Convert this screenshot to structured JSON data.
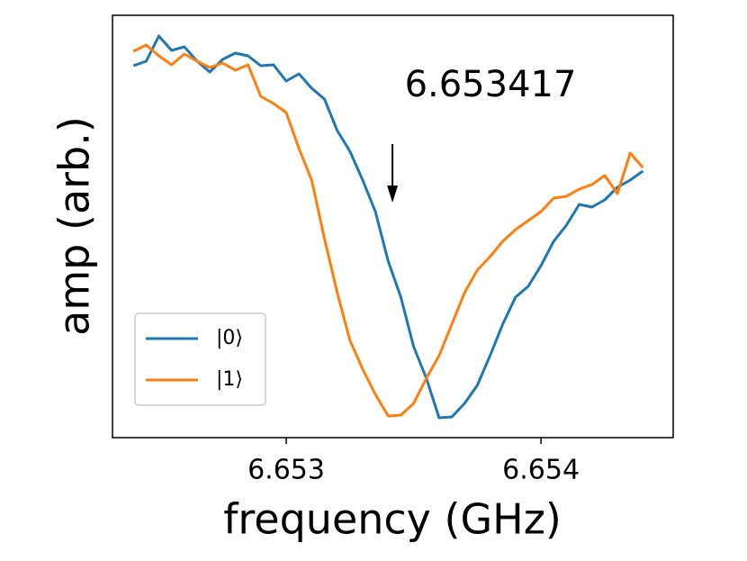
{
  "chart_data": {
    "type": "line",
    "xlabel": "frequency (GHz)",
    "ylabel": "amp (arb.)",
    "x": [
      6.6524,
      6.65245,
      6.6525,
      6.65255,
      6.6526,
      6.65265,
      6.6527,
      6.65275,
      6.6528,
      6.65285,
      6.6529,
      6.65295,
      6.653,
      6.65305,
      6.6531,
      6.65315,
      6.6532,
      6.65325,
      6.6533,
      6.65335,
      6.6534,
      6.65345,
      6.6535,
      6.65355,
      6.6536,
      6.65365,
      6.6537,
      6.65375,
      6.6538,
      6.65385,
      6.6539,
      6.65395,
      6.654,
      6.65405,
      6.6541,
      6.65415,
      6.6542,
      6.65425,
      6.6543,
      6.65435,
      6.6544
    ],
    "series": [
      {
        "name": "|0⟩",
        "color": "#1f77b4",
        "values": [
          413,
          418,
          446,
          430,
          434,
          418,
          406,
          420,
          427,
          424,
          413,
          414,
          396,
          404,
          388,
          376,
          341,
          318,
          286,
          251,
          196,
          156,
          101,
          66,
          22,
          23,
          38,
          58,
          91,
          126,
          156,
          168,
          191,
          218,
          236,
          259,
          256,
          264,
          278,
          286,
          296
        ]
      },
      {
        "name": "|1⟩",
        "color": "#ff7f0e",
        "values": [
          429,
          436,
          424,
          414,
          426,
          418,
          411,
          416,
          408,
          414,
          379,
          371,
          361,
          321,
          286,
          221,
          161,
          108,
          76,
          48,
          24,
          25,
          38,
          66,
          91,
          126,
          161,
          186,
          201,
          218,
          231,
          241,
          251,
          266,
          268,
          276,
          281,
          291,
          271,
          316,
          300
        ]
      }
    ],
    "xlim": [
      6.652318,
      6.654519
    ],
    "ylim": [
      0,
      469
    ],
    "xticks": [
      6.653,
      6.654
    ],
    "annotation": {
      "text": "6.653417",
      "arrow_x": 6.653417
    },
    "legend": "lower left",
    "grid": false
  }
}
